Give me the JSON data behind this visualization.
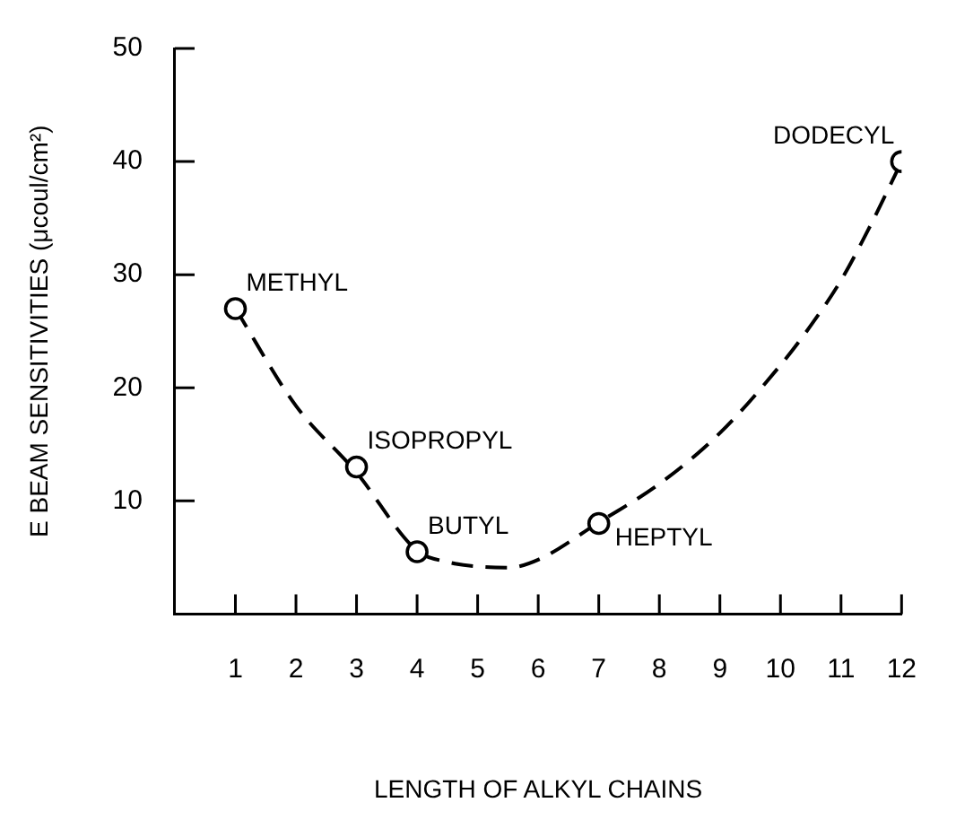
{
  "chart_data": {
    "type": "scatter",
    "xlabel": "LENGTH OF ALKYL CHAINS",
    "ylabel": "E BEAM SENSITIVITIES (μcoul/cm²)",
    "xlim": [
      0,
      12
    ],
    "xticks": [
      1,
      2,
      3,
      4,
      5,
      6,
      7,
      8,
      9,
      10,
      11,
      12
    ],
    "ylim": [
      0,
      50
    ],
    "yticks": [
      10,
      20,
      30,
      40,
      50
    ],
    "grid": false,
    "legend": false,
    "series": [
      {
        "color": "#000000",
        "marker": "circle",
        "x": [
          1,
          3,
          4,
          7,
          12
        ],
        "values": [
          27,
          13,
          5.5,
          8,
          40
        ]
      },
      {
        "type": "line",
        "color": "#000000",
        "marker": "none",
        "line_style": "dashed",
        "x": [
          1,
          2,
          3,
          4,
          4.5,
          5,
          5.5,
          6,
          7,
          8,
          9,
          10,
          10.5,
          11,
          11.5,
          12
        ],
        "values": [
          27,
          18.4,
          12.5,
          5.6,
          4.6,
          4.2,
          4.1,
          4.8,
          8.1,
          11.5,
          16,
          22,
          25.5,
          29.5,
          34.5,
          40
        ]
      }
    ],
    "annotations": [
      {
        "text": "METHYL",
        "x": 1,
        "y": 27
      },
      {
        "text": "ISOPROPYL",
        "x": 3,
        "y": 13
      },
      {
        "text": "BUTYL",
        "x": 4,
        "y": 5.5
      },
      {
        "text": "HEPTYL",
        "x": 7,
        "y": 8
      },
      {
        "text": "DODECYL",
        "x": 12,
        "y": 40
      }
    ]
  }
}
